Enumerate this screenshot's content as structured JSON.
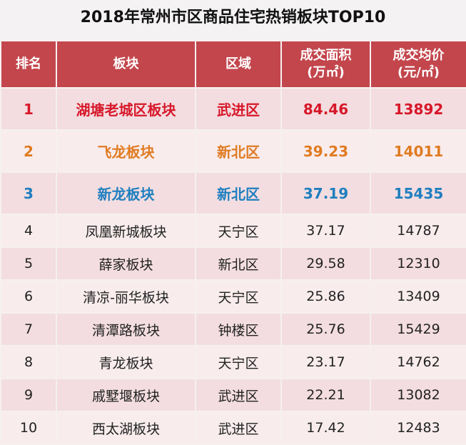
{
  "title": "2018年常州市区商品住宅热销板块TOP10",
  "headers": {
    "rank": "排名",
    "block": "板块",
    "district": "区域",
    "area_line1": "成交面积",
    "area_line2": "(万㎡)",
    "price_line1": "成交均价",
    "price_line2": "(元/㎡)"
  },
  "colors": {
    "header_bg": "#c3464d",
    "rank1": "#d7182a",
    "rank2": "#e07b22",
    "rank3": "#1f7fbf"
  },
  "rows": [
    {
      "rank": "1",
      "block": "湖塘老城区板块",
      "district": "武进区",
      "area": "84.46",
      "price": "13892"
    },
    {
      "rank": "2",
      "block": "飞龙板块",
      "district": "新北区",
      "area": "39.23",
      "price": "14011"
    },
    {
      "rank": "3",
      "block": "新龙板块",
      "district": "新北区",
      "area": "37.19",
      "price": "15435"
    },
    {
      "rank": "4",
      "block": "凤凰新城板块",
      "district": "天宁区",
      "area": "37.17",
      "price": "14787"
    },
    {
      "rank": "5",
      "block": "薛家板块",
      "district": "新北区",
      "area": "29.58",
      "price": "12310"
    },
    {
      "rank": "6",
      "block": "清凉-丽华板块",
      "district": "天宁区",
      "area": "25.86",
      "price": "13409"
    },
    {
      "rank": "7",
      "block": "清潭路板块",
      "district": "钟楼区",
      "area": "25.76",
      "price": "15429"
    },
    {
      "rank": "8",
      "block": "青龙板块",
      "district": "天宁区",
      "area": "23.17",
      "price": "14762"
    },
    {
      "rank": "9",
      "block": "戚墅堰板块",
      "district": "武进区",
      "area": "22.21",
      "price": "13082"
    },
    {
      "rank": "10",
      "block": "西太湖板块",
      "district": "武进区",
      "area": "17.42",
      "price": "12483"
    }
  ]
}
